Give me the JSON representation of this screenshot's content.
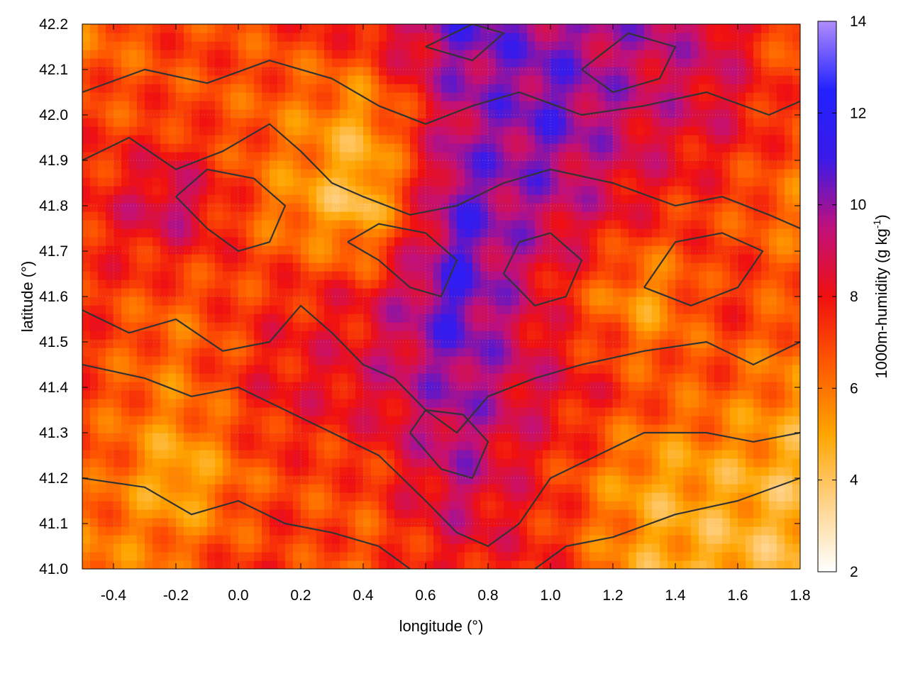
{
  "chart_data": {
    "type": "heatmap",
    "xlabel": "longitude (°)",
    "ylabel": "latitude (°)",
    "colorbar_label": "1000m-humidity (g kg",
    "colorbar_label_sup": "-1",
    "colorbar_label_end": ")",
    "xlim": [
      -0.5,
      1.8
    ],
    "ylim": [
      41.0,
      42.2
    ],
    "clim": [
      2,
      14
    ],
    "x_ticks": [
      -0.4,
      -0.2,
      0.0,
      0.2,
      0.4,
      0.6,
      0.8,
      1.0,
      1.2,
      1.4,
      1.6,
      1.8
    ],
    "x_tick_labels": [
      "-0.4",
      "-0.2",
      "0.0",
      "0.2",
      "0.4",
      "0.6",
      "0.8",
      "1.0",
      "1.2",
      "1.4",
      "1.6",
      "1.8"
    ],
    "y_ticks": [
      41.0,
      41.1,
      41.2,
      41.3,
      41.4,
      41.5,
      41.6,
      41.7,
      41.8,
      41.9,
      42.0,
      42.1,
      42.2
    ],
    "y_tick_labels": [
      "41.0",
      "41.1",
      "41.2",
      "41.3",
      "41.4",
      "41.5",
      "41.6",
      "41.7",
      "41.8",
      "41.9",
      "42.0",
      "42.1",
      "42.2"
    ],
    "colorbar_ticks": [
      2,
      4,
      6,
      8,
      10,
      12,
      14
    ],
    "colorbar_tick_labels": [
      "2",
      "4",
      "6",
      "8",
      "10",
      "12",
      "14"
    ],
    "colormap": [
      "#ffffff",
      "#ffd38a",
      "#ffa500",
      "#ff5a00",
      "#f01010",
      "#c0107a",
      "#3a1ae8",
      "#2222ff",
      "#b08cff"
    ],
    "grid": true,
    "contour_color": "#333333",
    "humidity_grid": {
      "x": [
        -0.5,
        -0.2,
        0.1,
        0.4,
        0.7,
        1.0,
        1.3,
        1.55,
        1.8
      ],
      "y": [
        41.0,
        41.2,
        41.4,
        41.6,
        41.8,
        42.0,
        42.2
      ],
      "z": [
        [
          5.5,
          6.5,
          7.5,
          6.5,
          8.0,
          7.5,
          5.0,
          4.5,
          4.5
        ],
        [
          7.0,
          4.5,
          7.0,
          7.0,
          9.5,
          7.5,
          5.0,
          5.0,
          4.5
        ],
        [
          7.0,
          6.0,
          8.0,
          8.5,
          10.0,
          8.5,
          7.0,
          6.5,
          5.5
        ],
        [
          7.5,
          6.5,
          7.5,
          8.0,
          11.0,
          8.0,
          5.0,
          7.5,
          6.5
        ],
        [
          7.5,
          9.5,
          6.0,
          4.0,
          10.5,
          9.5,
          8.0,
          7.0,
          6.0
        ],
        [
          7.0,
          7.0,
          6.5,
          5.0,
          9.5,
          10.5,
          9.0,
          8.5,
          7.0
        ],
        [
          6.0,
          7.0,
          7.0,
          8.0,
          10.5,
          10.0,
          9.5,
          9.0,
          6.0
        ]
      ]
    },
    "topography_contours": [
      [
        [
          -0.5,
          41.57
        ],
        [
          -0.35,
          41.52
        ],
        [
          -0.2,
          41.55
        ],
        [
          -0.05,
          41.48
        ],
        [
          0.1,
          41.5
        ],
        [
          0.2,
          41.58
        ],
        [
          0.3,
          41.52
        ],
        [
          0.4,
          41.45
        ],
        [
          0.5,
          41.42
        ],
        [
          0.6,
          41.35
        ],
        [
          0.7,
          41.3
        ],
        [
          0.8,
          41.38
        ],
        [
          0.95,
          41.42
        ],
        [
          1.1,
          41.45
        ],
        [
          1.3,
          41.48
        ],
        [
          1.5,
          41.5
        ],
        [
          1.65,
          41.45
        ],
        [
          1.8,
          41.5
        ]
      ],
      [
        [
          -0.5,
          41.45
        ],
        [
          -0.3,
          41.42
        ],
        [
          -0.15,
          41.38
        ],
        [
          0.0,
          41.4
        ],
        [
          0.15,
          41.35
        ],
        [
          0.3,
          41.3
        ],
        [
          0.45,
          41.25
        ],
        [
          0.6,
          41.15
        ],
        [
          0.7,
          41.08
        ],
        [
          0.8,
          41.05
        ],
        [
          0.9,
          41.1
        ],
        [
          1.0,
          41.2
        ],
        [
          1.15,
          41.25
        ],
        [
          1.3,
          41.3
        ],
        [
          1.5,
          41.3
        ],
        [
          1.65,
          41.28
        ],
        [
          1.8,
          41.3
        ]
      ],
      [
        [
          -0.5,
          41.2
        ],
        [
          -0.3,
          41.18
        ],
        [
          -0.15,
          41.12
        ],
        [
          0.0,
          41.15
        ],
        [
          0.15,
          41.1
        ],
        [
          0.3,
          41.08
        ],
        [
          0.45,
          41.05
        ],
        [
          0.55,
          41.0
        ]
      ],
      [
        [
          0.95,
          41.0
        ],
        [
          1.05,
          41.05
        ],
        [
          1.2,
          41.07
        ],
        [
          1.4,
          41.12
        ],
        [
          1.6,
          41.15
        ],
        [
          1.8,
          41.2
        ]
      ],
      [
        [
          -0.5,
          41.9
        ],
        [
          -0.35,
          41.95
        ],
        [
          -0.2,
          41.88
        ],
        [
          -0.05,
          41.92
        ],
        [
          0.1,
          41.98
        ],
        [
          0.2,
          41.92
        ],
        [
          0.3,
          41.85
        ],
        [
          0.4,
          41.82
        ],
        [
          0.55,
          41.78
        ],
        [
          0.7,
          41.8
        ],
        [
          0.85,
          41.85
        ],
        [
          1.0,
          41.88
        ],
        [
          1.2,
          41.85
        ],
        [
          1.4,
          41.8
        ],
        [
          1.55,
          41.82
        ],
        [
          1.7,
          41.78
        ],
        [
          1.8,
          41.75
        ]
      ],
      [
        [
          -0.5,
          42.05
        ],
        [
          -0.3,
          42.1
        ],
        [
          -0.1,
          42.07
        ],
        [
          0.1,
          42.12
        ],
        [
          0.3,
          42.08
        ],
        [
          0.45,
          42.02
        ],
        [
          0.6,
          41.98
        ],
        [
          0.75,
          42.02
        ],
        [
          0.9,
          42.05
        ],
        [
          1.1,
          42.0
        ],
        [
          1.3,
          42.02
        ],
        [
          1.5,
          42.05
        ],
        [
          1.7,
          42.0
        ],
        [
          1.8,
          42.03
        ]
      ],
      [
        [
          -0.2,
          41.82
        ],
        [
          -0.1,
          41.75
        ],
        [
          0.0,
          41.7
        ],
        [
          0.1,
          41.72
        ],
        [
          0.15,
          41.8
        ],
        [
          0.05,
          41.86
        ],
        [
          -0.1,
          41.88
        ],
        [
          -0.2,
          41.82
        ]
      ],
      [
        [
          0.35,
          41.72
        ],
        [
          0.45,
          41.68
        ],
        [
          0.55,
          41.62
        ],
        [
          0.65,
          41.6
        ],
        [
          0.7,
          41.68
        ],
        [
          0.6,
          41.74
        ],
        [
          0.45,
          41.76
        ],
        [
          0.35,
          41.72
        ]
      ],
      [
        [
          0.85,
          41.65
        ],
        [
          0.95,
          41.58
        ],
        [
          1.05,
          41.6
        ],
        [
          1.1,
          41.68
        ],
        [
          1.0,
          41.74
        ],
        [
          0.9,
          41.72
        ],
        [
          0.85,
          41.65
        ]
      ],
      [
        [
          1.3,
          41.62
        ],
        [
          1.45,
          41.58
        ],
        [
          1.6,
          41.62
        ],
        [
          1.68,
          41.7
        ],
        [
          1.55,
          41.74
        ],
        [
          1.4,
          41.72
        ],
        [
          1.3,
          41.62
        ]
      ],
      [
        [
          0.55,
          41.3
        ],
        [
          0.65,
          41.22
        ],
        [
          0.75,
          41.2
        ],
        [
          0.8,
          41.28
        ],
        [
          0.72,
          41.34
        ],
        [
          0.6,
          41.35
        ],
        [
          0.55,
          41.3
        ]
      ],
      [
        [
          0.6,
          42.15
        ],
        [
          0.75,
          42.12
        ],
        [
          0.85,
          42.18
        ],
        [
          0.75,
          42.2
        ],
        [
          0.6,
          42.15
        ]
      ],
      [
        [
          1.1,
          42.1
        ],
        [
          1.2,
          42.05
        ],
        [
          1.35,
          42.08
        ],
        [
          1.4,
          42.15
        ],
        [
          1.25,
          42.18
        ],
        [
          1.1,
          42.1
        ]
      ]
    ]
  }
}
